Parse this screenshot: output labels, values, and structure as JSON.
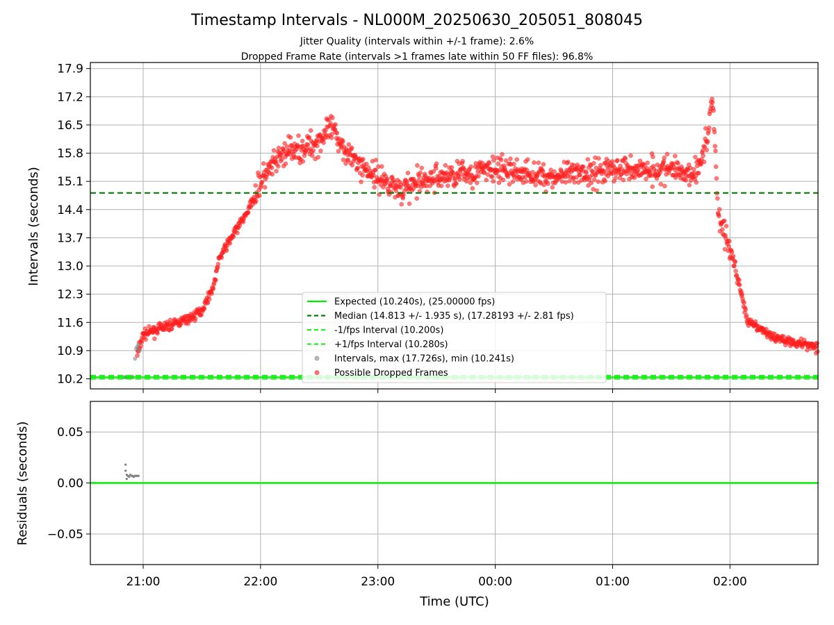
{
  "chart_data": [
    {
      "type": "scatter",
      "title": "Timestamp Intervals - NL000M_20250630_205051_808045",
      "subtitle_lines": [
        "Jitter Quality (intervals within +/-1 frame): 2.6%",
        "Dropped Frame Rate (intervals >1 frames late within 50 FF files): 96.8%"
      ],
      "ylabel": "Intervals (seconds)",
      "xlim_hours": [
        20.55,
        26.75
      ],
      "ylim": [
        9.95,
        18.05
      ],
      "yticks": [
        "10.2",
        "10.9",
        "11.6",
        "12.3",
        "13.0",
        "13.7",
        "14.4",
        "15.1",
        "15.8",
        "16.5",
        "17.2",
        "17.9"
      ],
      "ytick_values": [
        10.2,
        10.9,
        11.6,
        12.3,
        13.0,
        13.7,
        14.4,
        15.1,
        15.8,
        16.5,
        17.2,
        17.9
      ],
      "grid": true,
      "legend_position": "lower-center",
      "reference_lines": {
        "expected": 10.24,
        "median": 14.813,
        "minus_fps": 10.2,
        "plus_fps": 10.28
      },
      "legend": [
        {
          "label": "Expected (10.240s), (25.00000 fps)",
          "style": "solid",
          "color": "#00ee00"
        },
        {
          "label": "Median (14.813 +/- 1.935 s), (17.28193 +/- 2.81 fps)",
          "style": "dashed",
          "color": "#008000"
        },
        {
          "label": "-1/fps Interval (10.200s)",
          "style": "dashed",
          "color": "#22ee22"
        },
        {
          "label": "+1/fps Interval (10.280s)",
          "style": "dashed",
          "color": "#22ee22"
        },
        {
          "label": "Intervals, max (17.726s), min (10.241s)",
          "style": "marker",
          "color": "#888888"
        },
        {
          "label": "Possible Dropped Frames",
          "style": "marker",
          "color": "#ff2020"
        }
      ],
      "series": [
        {
          "name": "Intervals, max (17.726s), min (10.241s)",
          "color": "#888888",
          "points": [
            [
              20.84,
              10.24
            ],
            [
              20.85,
              10.24
            ],
            [
              20.86,
              10.24
            ],
            [
              20.87,
              10.24
            ],
            [
              20.88,
              10.24
            ],
            [
              20.89,
              10.24
            ],
            [
              20.9,
              10.24
            ],
            [
              20.91,
              10.25
            ],
            [
              20.93,
              10.7
            ],
            [
              20.94,
              10.95
            ],
            [
              20.95,
              11.0
            ],
            [
              20.96,
              11.05
            ],
            [
              20.97,
              10.9
            ]
          ]
        },
        {
          "name": "Possible Dropped Frames",
          "color": "#ff2020",
          "trend": [
            [
              20.95,
              10.8
            ],
            [
              21.0,
              11.3
            ],
            [
              21.2,
              11.5
            ],
            [
              21.4,
              11.7
            ],
            [
              21.5,
              11.9
            ],
            [
              21.6,
              12.5
            ],
            [
              21.65,
              13.2
            ],
            [
              21.75,
              13.7
            ],
            [
              21.9,
              14.4
            ],
            [
              22.0,
              15.1
            ],
            [
              22.2,
              15.8
            ],
            [
              22.45,
              16.0
            ],
            [
              22.6,
              16.4
            ],
            [
              22.8,
              15.6
            ],
            [
              23.0,
              15.2
            ],
            [
              23.2,
              14.9
            ],
            [
              23.5,
              15.2
            ],
            [
              24.0,
              15.4
            ],
            [
              24.5,
              15.2
            ],
            [
              25.0,
              15.4
            ],
            [
              25.5,
              15.4
            ],
            [
              25.7,
              15.3
            ],
            [
              25.8,
              16.0
            ],
            [
              25.85,
              17.3
            ],
            [
              25.9,
              14.3
            ],
            [
              26.0,
              13.4
            ],
            [
              26.1,
              12.3
            ],
            [
              26.15,
              11.6
            ],
            [
              26.4,
              11.2
            ],
            [
              26.75,
              11.0
            ]
          ],
          "spread_sd": 0.38
        }
      ]
    },
    {
      "type": "scatter",
      "ylabel": "Residuals (seconds)",
      "xlabel": "Time (UTC)",
      "ylim": [
        -0.08,
        0.08
      ],
      "yticks": [
        "0.05",
        "0.00",
        "−0.05"
      ],
      "ytick_values": [
        0.05,
        0.0,
        -0.05
      ],
      "xticks": [
        "21:00",
        "22:00",
        "23:00",
        "00:00",
        "01:00",
        "02:00"
      ],
      "xtick_values_hours": [
        21,
        22,
        23,
        24,
        25,
        26
      ],
      "grid": true,
      "zero_line_color": "#00ee00",
      "series": [
        {
          "name": "residuals",
          "color": "#808080",
          "points": [
            [
              20.85,
              0.018
            ],
            [
              20.85,
              0.012
            ],
            [
              20.86,
              0.008
            ],
            [
              20.86,
              0.004
            ],
            [
              20.87,
              0.007
            ],
            [
              20.88,
              0.006
            ],
            [
              20.89,
              0.008
            ],
            [
              20.9,
              0.007
            ],
            [
              20.91,
              0.007
            ],
            [
              20.92,
              0.006
            ],
            [
              20.93,
              0.007
            ],
            [
              20.94,
              0.007
            ],
            [
              20.95,
              0.007
            ],
            [
              20.96,
              0.007
            ]
          ]
        }
      ]
    }
  ]
}
